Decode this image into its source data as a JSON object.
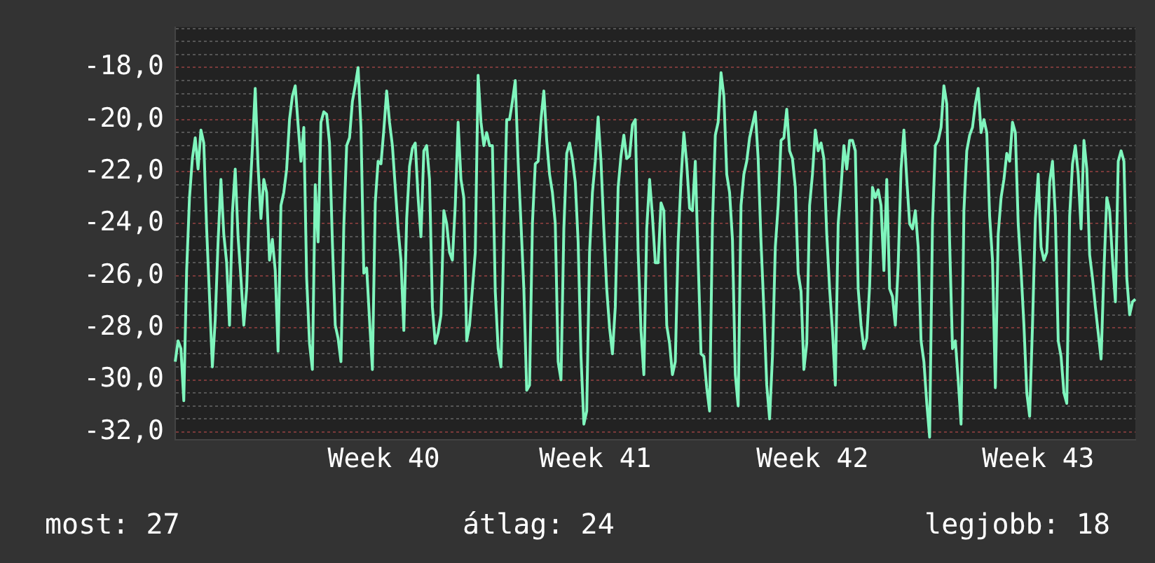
{
  "chart_data": {
    "type": "line",
    "ylim": [
      -32.3,
      -16.45
    ],
    "categories": [
      null,
      null,
      null,
      null,
      null,
      null,
      null,
      null,
      null,
      null,
      null,
      null,
      null,
      null,
      null,
      null,
      null,
      null,
      null,
      null,
      null,
      null,
      null,
      null,
      null,
      null,
      null,
      null,
      null,
      null,
      null,
      null,
      null,
      null,
      null,
      null,
      null,
      null,
      null,
      null,
      null,
      null,
      null,
      null,
      null,
      null,
      null,
      null,
      null,
      null,
      null,
      null,
      null,
      null,
      null,
      null,
      null,
      null,
      null,
      null,
      null,
      null,
      null,
      null,
      null,
      null,
      null,
      null,
      null,
      null,
      null,
      null,
      null,
      "Week 40",
      null,
      null,
      null,
      null,
      null,
      null,
      null,
      null,
      null,
      null,
      null,
      null,
      null,
      null,
      null,
      null,
      null,
      null,
      null,
      null,
      null,
      null,
      null,
      null,
      null,
      null,
      null,
      null,
      null,
      null,
      null,
      null,
      null,
      null,
      null,
      null,
      null,
      null,
      null,
      null,
      null,
      null,
      null,
      null,
      null,
      null,
      null,
      null,
      null,
      null,
      null,
      null,
      null,
      null,
      null,
      null,
      null,
      null,
      null,
      null,
      null,
      null,
      null,
      null,
      null,
      null,
      null,
      null,
      null,
      null,
      null,
      null,
      null,
      "Week 41",
      null,
      null,
      null,
      null,
      null,
      null,
      null,
      null,
      null,
      null,
      null,
      null,
      null,
      null,
      null,
      null,
      null,
      null,
      null,
      null,
      null,
      null,
      null,
      null,
      null,
      null,
      null,
      null,
      null,
      null,
      null,
      null,
      null,
      null,
      null,
      null,
      null,
      null,
      null,
      null,
      null,
      null,
      null,
      null,
      null,
      null,
      null,
      null,
      null,
      null,
      null,
      null,
      null,
      null,
      null,
      null,
      null,
      null,
      null,
      null,
      null,
      null,
      null,
      null,
      null,
      null,
      null,
      null,
      null,
      null,
      null,
      null,
      null,
      null,
      null,
      "Week 42",
      null,
      null,
      null,
      null,
      null,
      null,
      null,
      null,
      null,
      null,
      null,
      null,
      null,
      null,
      null,
      null,
      null,
      null,
      null,
      null,
      null,
      null,
      null,
      null,
      null,
      null,
      null,
      null,
      null,
      null,
      null,
      null,
      null,
      null,
      null,
      null,
      null,
      null,
      null,
      null,
      null,
      null,
      null,
      null,
      null,
      null,
      null,
      null,
      null,
      null,
      null,
      null,
      null,
      null,
      null,
      null,
      null,
      null,
      null,
      null,
      null,
      null,
      null,
      null,
      null,
      null,
      null,
      null,
      null,
      null,
      null,
      null,
      null,
      null,
      null,
      null,
      null,
      null,
      "Week 43",
      null,
      null,
      null,
      null,
      null,
      null,
      null,
      null,
      null,
      null,
      null,
      null,
      null,
      null,
      null,
      null,
      null,
      null,
      null,
      null,
      null,
      null,
      null,
      null,
      null,
      null,
      null,
      null,
      null,
      null,
      null,
      null,
      null,
      null
    ],
    "yticks": [
      {
        "value": -32,
        "label": "-32,0"
      },
      {
        "value": -31.5,
        "label": null
      },
      {
        "value": -31,
        "label": null
      },
      {
        "value": -30.5,
        "label": null
      },
      {
        "value": -30,
        "label": "-30,0"
      },
      {
        "value": -29.5,
        "label": null
      },
      {
        "value": -29,
        "label": null
      },
      {
        "value": -28.5,
        "label": null
      },
      {
        "value": -28,
        "label": "-28,0"
      },
      {
        "value": -27.5,
        "label": null
      },
      {
        "value": -27,
        "label": null
      },
      {
        "value": -26.5,
        "label": null
      },
      {
        "value": -26,
        "label": "-26,0"
      },
      {
        "value": -25.5,
        "label": null
      },
      {
        "value": -25,
        "label": null
      },
      {
        "value": -24.5,
        "label": null
      },
      {
        "value": -24,
        "label": "-24,0"
      },
      {
        "value": -23.5,
        "label": null
      },
      {
        "value": -23,
        "label": null
      },
      {
        "value": -22.5,
        "label": null
      },
      {
        "value": -22,
        "label": "-22,0"
      },
      {
        "value": -21.5,
        "label": null
      },
      {
        "value": -21,
        "label": null
      },
      {
        "value": -20.5,
        "label": null
      },
      {
        "value": -20,
        "label": "-20,0"
      },
      {
        "value": -19.5,
        "label": null
      },
      {
        "value": -19,
        "label": null
      },
      {
        "value": -18.5,
        "label": null
      },
      {
        "value": -18,
        "label": "-18,0"
      },
      {
        "value": -17.5,
        "label": null
      },
      {
        "value": -17,
        "label": null
      },
      {
        "value": -16.5,
        "label": null
      }
    ],
    "grid": "y",
    "legend": false,
    "marker": "none",
    "line_style": "solid",
    "annotations": [
      "most: 27",
      "átlag: 24",
      "legjobb: 18"
    ],
    "series": [
      {
        "color": "#7ff5bd",
        "values": [
          -29.3,
          -28.5,
          -28.8,
          -30.8,
          -25.8,
          -23.0,
          -21.5,
          -20.7,
          -21.9,
          -20.4,
          -20.9,
          -24.2,
          -26.8,
          -29.5,
          -27.7,
          -24.7,
          -22.3,
          -24.4,
          -25.5,
          -27.9,
          -23.6,
          -21.9,
          -24.5,
          -26.1,
          -27.9,
          -26.5,
          -23.2,
          -21.1,
          -18.8,
          -21.8,
          -23.8,
          -22.3,
          -22.8,
          -25.4,
          -24.6,
          -25.8,
          -28.9,
          -23.3,
          -22.8,
          -21.9,
          -20.0,
          -19.1,
          -18.7,
          -20.2,
          -21.6,
          -20.3,
          -26.1,
          -28.6,
          -29.6,
          -22.5,
          -24.7,
          -20.1,
          -19.7,
          -19.8,
          -20.9,
          -24.7,
          -27.9,
          -28.4,
          -29.3,
          -24.1,
          -21.0,
          -20.7,
          -19.3,
          -18.7,
          -18.0,
          -20.3,
          -25.9,
          -25.7,
          -27.7,
          -29.6,
          -23.2,
          -21.6,
          -21.7,
          -20.4,
          -18.9,
          -20.1,
          -21.0,
          -22.6,
          -24.2,
          -25.4,
          -28.1,
          -23.8,
          -21.8,
          -21.1,
          -20.9,
          -23.0,
          -24.5,
          -21.2,
          -21.0,
          -22.3,
          -27.2,
          -28.6,
          -28.2,
          -27.5,
          -23.5,
          -24.0,
          -25.1,
          -25.4,
          -23.3,
          -20.1,
          -22.3,
          -23.0,
          -28.5,
          -27.9,
          -26.5,
          -25.1,
          -18.3,
          -20.1,
          -21.0,
          -20.5,
          -21.0,
          -21.0,
          -26.6,
          -28.8,
          -29.5,
          -24.5,
          -20.0,
          -20.0,
          -19.3,
          -18.5,
          -21.6,
          -24.0,
          -26.5,
          -30.4,
          -30.2,
          -24.0,
          -21.7,
          -21.6,
          -20.0,
          -18.9,
          -20.8,
          -22.1,
          -22.8,
          -24.0,
          -29.3,
          -30.0,
          -24.2,
          -21.3,
          -20.9,
          -21.5,
          -22.4,
          -24.7,
          -29.1,
          -31.7,
          -31.2,
          -25.1,
          -22.8,
          -21.6,
          -19.9,
          -21.6,
          -24.2,
          -26.5,
          -28.0,
          -29.0,
          -27.2,
          -22.6,
          -21.4,
          -20.6,
          -21.5,
          -21.4,
          -20.2,
          -20.0,
          -25.1,
          -28.1,
          -29.8,
          -24.2,
          -22.3,
          -23.7,
          -25.5,
          -25.5,
          -23.2,
          -23.5,
          -27.9,
          -28.6,
          -29.8,
          -29.3,
          -24.7,
          -22.3,
          -20.5,
          -21.7,
          -23.4,
          -23.5,
          -21.6,
          -25.4,
          -29.0,
          -29.1,
          -30.3,
          -31.2,
          -24.0,
          -20.6,
          -20.1,
          -18.2,
          -19.1,
          -22.1,
          -22.8,
          -24.6,
          -29.8,
          -31.0,
          -23.3,
          -22.1,
          -21.6,
          -20.7,
          -20.2,
          -19.7,
          -21.5,
          -24.7,
          -27.3,
          -30.2,
          -31.5,
          -29.1,
          -24.9,
          -23.3,
          -20.8,
          -20.7,
          -19.6,
          -21.2,
          -21.5,
          -22.6,
          -25.9,
          -26.6,
          -29.6,
          -28.6,
          -23.3,
          -22.1,
          -20.4,
          -21.2,
          -20.9,
          -21.5,
          -24.4,
          -26.5,
          -28.1,
          -30.2,
          -24.0,
          -22.6,
          -21.0,
          -21.9,
          -20.8,
          -20.8,
          -21.2,
          -26.5,
          -27.9,
          -28.8,
          -28.4,
          -26.4,
          -22.6,
          -23.0,
          -22.7,
          -23.3,
          -25.8,
          -22.3,
          -26.5,
          -26.8,
          -27.9,
          -25.6,
          -21.9,
          -20.4,
          -22.3,
          -24.0,
          -24.2,
          -23.5,
          -24.9,
          -28.5,
          -29.3,
          -30.9,
          -32.2,
          -24.0,
          -21.0,
          -20.8,
          -20.3,
          -18.7,
          -19.4,
          -24.7,
          -28.8,
          -28.5,
          -30.0,
          -31.7,
          -23.5,
          -21.2,
          -20.6,
          -20.3,
          -19.4,
          -18.8,
          -20.5,
          -20.0,
          -20.5,
          -23.7,
          -25.4,
          -30.3,
          -24.4,
          -23.0,
          -22.3,
          -21.3,
          -21.6,
          -20.1,
          -20.5,
          -24.0,
          -25.8,
          -27.9,
          -30.5,
          -31.4,
          -27.9,
          -23.8,
          -22.1,
          -24.9,
          -25.4,
          -25.1,
          -22.4,
          -21.6,
          -23.7,
          -28.5,
          -29.1,
          -30.5,
          -30.9,
          -23.7,
          -21.7,
          -21.0,
          -22.1,
          -24.2,
          -20.8,
          -21.9,
          -25.2,
          -26.1,
          -27.2,
          -28.2,
          -29.2,
          -25.8,
          -23.0,
          -23.5,
          -25.4,
          -27.0,
          -21.6,
          -21.2,
          -21.6,
          -26.1,
          -27.5,
          -27.0,
          -26.9
        ]
      }
    ]
  }
}
